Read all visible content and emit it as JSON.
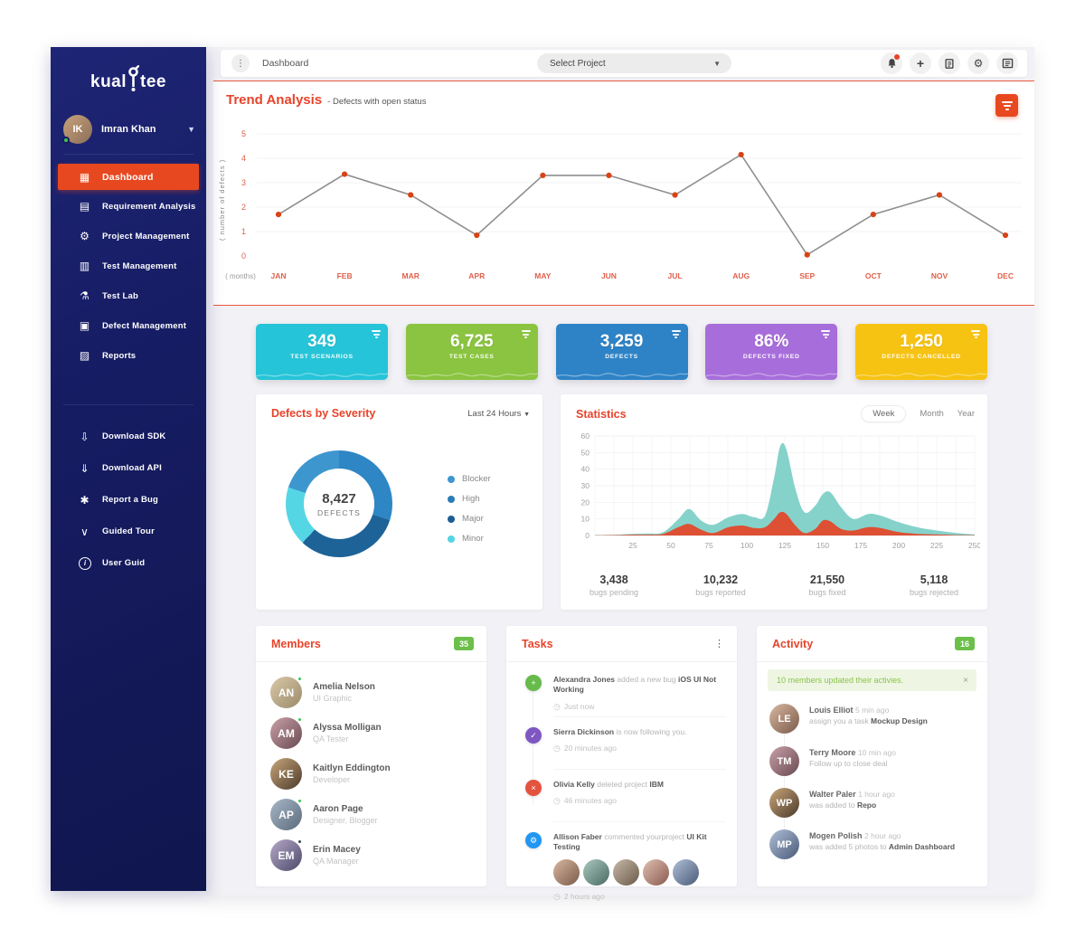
{
  "app": {
    "logo_left": "kual",
    "logo_right": "tee"
  },
  "topbar": {
    "breadcrumb": "Dashboard",
    "project_selector": "Select Project"
  },
  "sidebar": {
    "user": {
      "name": "Imran Khan"
    },
    "menu": [
      {
        "label": "Dashboard",
        "icon": "▦"
      },
      {
        "label": "Requirement Analysis",
        "icon": "▤"
      },
      {
        "label": "Project Management",
        "icon": "⚙"
      },
      {
        "label": "Test Management",
        "icon": "▥"
      },
      {
        "label": "Test Lab",
        "icon": "⚗"
      },
      {
        "label": "Defect Management",
        "icon": "▣"
      },
      {
        "label": "Reports",
        "icon": "▨"
      }
    ],
    "secondary": [
      {
        "label": "Download SDK",
        "icon": "⇩"
      },
      {
        "label": "Download API",
        "icon": "⇓"
      },
      {
        "label": "Report a Bug",
        "icon": "✱"
      },
      {
        "label": "Guided Tour",
        "icon": "∨"
      },
      {
        "label": "User Guid",
        "icon": "i"
      }
    ]
  },
  "trend": {
    "title": "Trend Analysis",
    "subtitle": "- Defects with open status"
  },
  "cards": [
    {
      "value": "349",
      "label": "TEST SCENARIOS",
      "color": "#26c4d8"
    },
    {
      "value": "6,725",
      "label": "TEST CASES",
      "color": "#8ac440"
    },
    {
      "value": "3,259",
      "label": "DEFECTS",
      "color": "#2e83c6"
    },
    {
      "value": "86%",
      "label": "DEFECTS FIXED",
      "color": "#a76edb"
    },
    {
      "value": "1,250",
      "label": "DEFECTS CANCELLED",
      "color": "#f6c313"
    }
  ],
  "severity": {
    "title": "Defects by Severity",
    "range": "Last 24 Hours",
    "total": "8,427",
    "total_label": "DEFECTS",
    "legend": [
      {
        "label": "Blocker",
        "color": "#3e96cf"
      },
      {
        "label": "High",
        "color": "#2a7cb8"
      },
      {
        "label": "Major",
        "color": "#1b5e94"
      },
      {
        "label": "Minor",
        "color": "#52d5e5"
      }
    ]
  },
  "statistics": {
    "title": "Statistics",
    "tabs": [
      "Week",
      "Month",
      "Year"
    ],
    "active_tab": "Week",
    "summary": [
      {
        "value": "3,438",
        "label": "bugs pending"
      },
      {
        "value": "10,232",
        "label": "bugs reported"
      },
      {
        "value": "21,550",
        "label": "bugs fixed"
      },
      {
        "value": "5,118",
        "label": "bugs rejected"
      }
    ]
  },
  "members": {
    "title": "Members",
    "badge": "35",
    "items": [
      {
        "name": "Amelia Nelson",
        "role": "UI Graphic"
      },
      {
        "name": "Alyssa Molligan",
        "role": "QA Tester"
      },
      {
        "name": "Kaitlyn Eddington",
        "role": "Developer"
      },
      {
        "name": "Aaron Page",
        "role": "Designer, Blogger"
      },
      {
        "name": "Erin Macey",
        "role": "QA Manager"
      }
    ]
  },
  "tasks": {
    "title": "Tasks",
    "items": [
      {
        "name": "Alexandra Jones",
        "action": "added a new bug ",
        "highlight": "iOS UI Not Working",
        "time": "Just now",
        "icon": "+",
        "icon_color": "#66bb4a"
      },
      {
        "name": "Sierra Dickinson",
        "action": "is now following you.",
        "highlight": "",
        "time": "20 minutes ago",
        "icon": "✓",
        "icon_color": "#7e57c2"
      },
      {
        "name": "Olivia Kelly",
        "action": "deleted project ",
        "highlight": "IBM",
        "time": "46 minutes ago",
        "icon": "×",
        "icon_color": "#e4533f"
      },
      {
        "name": "Allison Faber",
        "action": "commented yourproject ",
        "highlight": "UI Kit Testing",
        "time": "2 hours ago",
        "icon": "⚙",
        "icon_color": "#2196f3"
      }
    ]
  },
  "activity": {
    "title": "Activity",
    "badge": "16",
    "notice": "10 members updated their activies.",
    "items": [
      {
        "name": "Louis Elliot",
        "time": "5 min ago",
        "action": "assign you a task ",
        "highlight": "Mockup Design"
      },
      {
        "name": "Terry Moore",
        "time": "10 min ago",
        "action": "Follow up to close deal",
        "highlight": ""
      },
      {
        "name": "Walter Paler",
        "time": "1 hour ago",
        "action": "was added to ",
        "highlight": "Repo"
      },
      {
        "name": "Mogen Polish",
        "time": "2 hour ago",
        "action": "was added 5 photos to ",
        "highlight": "Admin Dashboard"
      }
    ]
  },
  "chart_data": [
    {
      "type": "line",
      "title": "Trend Analysis - Defects with open status",
      "categories": [
        "JAN",
        "FEB",
        "MAR",
        "APR",
        "MAY",
        "JUN",
        "JUL",
        "AUG",
        "SEP",
        "OCT",
        "NOV",
        "DEC"
      ],
      "values": [
        1.7,
        3.35,
        2.5,
        0.85,
        3.3,
        3.3,
        2.5,
        4.15,
        0.05,
        1.7,
        2.5,
        0.85
      ],
      "xlabel": "( months)",
      "ylabel": "( number of defects )",
      "ylim": [
        0,
        5
      ],
      "yticks": [
        0,
        1,
        2,
        3,
        4,
        5
      ],
      "grid": true,
      "line_color": "#8f8f8f",
      "point_color": "#d84315",
      "tick_color": "#e0604b"
    },
    {
      "type": "pie",
      "title": "Defects by Severity",
      "total": 8427,
      "segments_clockwise_from_top": [
        {
          "label": "Blocker",
          "value": 30,
          "color": "#2e86c4"
        },
        {
          "label": "Major",
          "value": 32,
          "color": "#1d6398"
        },
        {
          "label": "Minor",
          "value": 18,
          "color": "#55d6e5"
        },
        {
          "label": "High",
          "value": 20,
          "color": "#3e96cf"
        }
      ]
    },
    {
      "type": "area",
      "title": "Statistics",
      "xlim": [
        0,
        250
      ],
      "ylim": [
        0,
        60
      ],
      "xticks": [
        25,
        50,
        75,
        100,
        125,
        150,
        175,
        200,
        225,
        250
      ],
      "yticks": [
        0,
        10,
        20,
        30,
        40,
        50,
        60
      ],
      "grid": true,
      "series": [
        {
          "name": "series-teal",
          "color": "#7ed0c8",
          "points": [
            [
              0,
              0.2
            ],
            [
              15,
              0.5
            ],
            [
              25,
              1
            ],
            [
              35,
              1.2
            ],
            [
              45,
              2
            ],
            [
              55,
              10
            ],
            [
              62,
              16
            ],
            [
              70,
              9
            ],
            [
              78,
              6.5
            ],
            [
              88,
              11
            ],
            [
              97,
              13
            ],
            [
              105,
              11
            ],
            [
              112,
              12
            ],
            [
              118,
              35
            ],
            [
              122,
              54
            ],
            [
              126,
              52
            ],
            [
              132,
              28
            ],
            [
              138,
              14
            ],
            [
              145,
              18
            ],
            [
              150,
              25
            ],
            [
              155,
              26
            ],
            [
              162,
              17
            ],
            [
              170,
              10
            ],
            [
              180,
              13
            ],
            [
              188,
              12
            ],
            [
              200,
              8
            ],
            [
              212,
              5
            ],
            [
              225,
              3
            ],
            [
              238,
              1.5
            ],
            [
              250,
              0.6
            ]
          ]
        },
        {
          "name": "series-orange",
          "color": "#e2492b",
          "points": [
            [
              0,
              0.1
            ],
            [
              15,
              0.3
            ],
            [
              25,
              0.5
            ],
            [
              35,
              0.5
            ],
            [
              45,
              1
            ],
            [
              55,
              5
            ],
            [
              62,
              7
            ],
            [
              70,
              3.5
            ],
            [
              78,
              1.5
            ],
            [
              88,
              5
            ],
            [
              97,
              6
            ],
            [
              105,
              4.5
            ],
            [
              112,
              5
            ],
            [
              118,
              10
            ],
            [
              122,
              14
            ],
            [
              126,
              13
            ],
            [
              132,
              6
            ],
            [
              138,
              1.5
            ],
            [
              145,
              4
            ],
            [
              150,
              9
            ],
            [
              155,
              8.5
            ],
            [
              162,
              4
            ],
            [
              170,
              3
            ],
            [
              180,
              5
            ],
            [
              188,
              4.5
            ],
            [
              200,
              2
            ],
            [
              212,
              1
            ],
            [
              225,
              0.6
            ],
            [
              238,
              0.3
            ],
            [
              250,
              0.2
            ]
          ]
        }
      ]
    }
  ]
}
